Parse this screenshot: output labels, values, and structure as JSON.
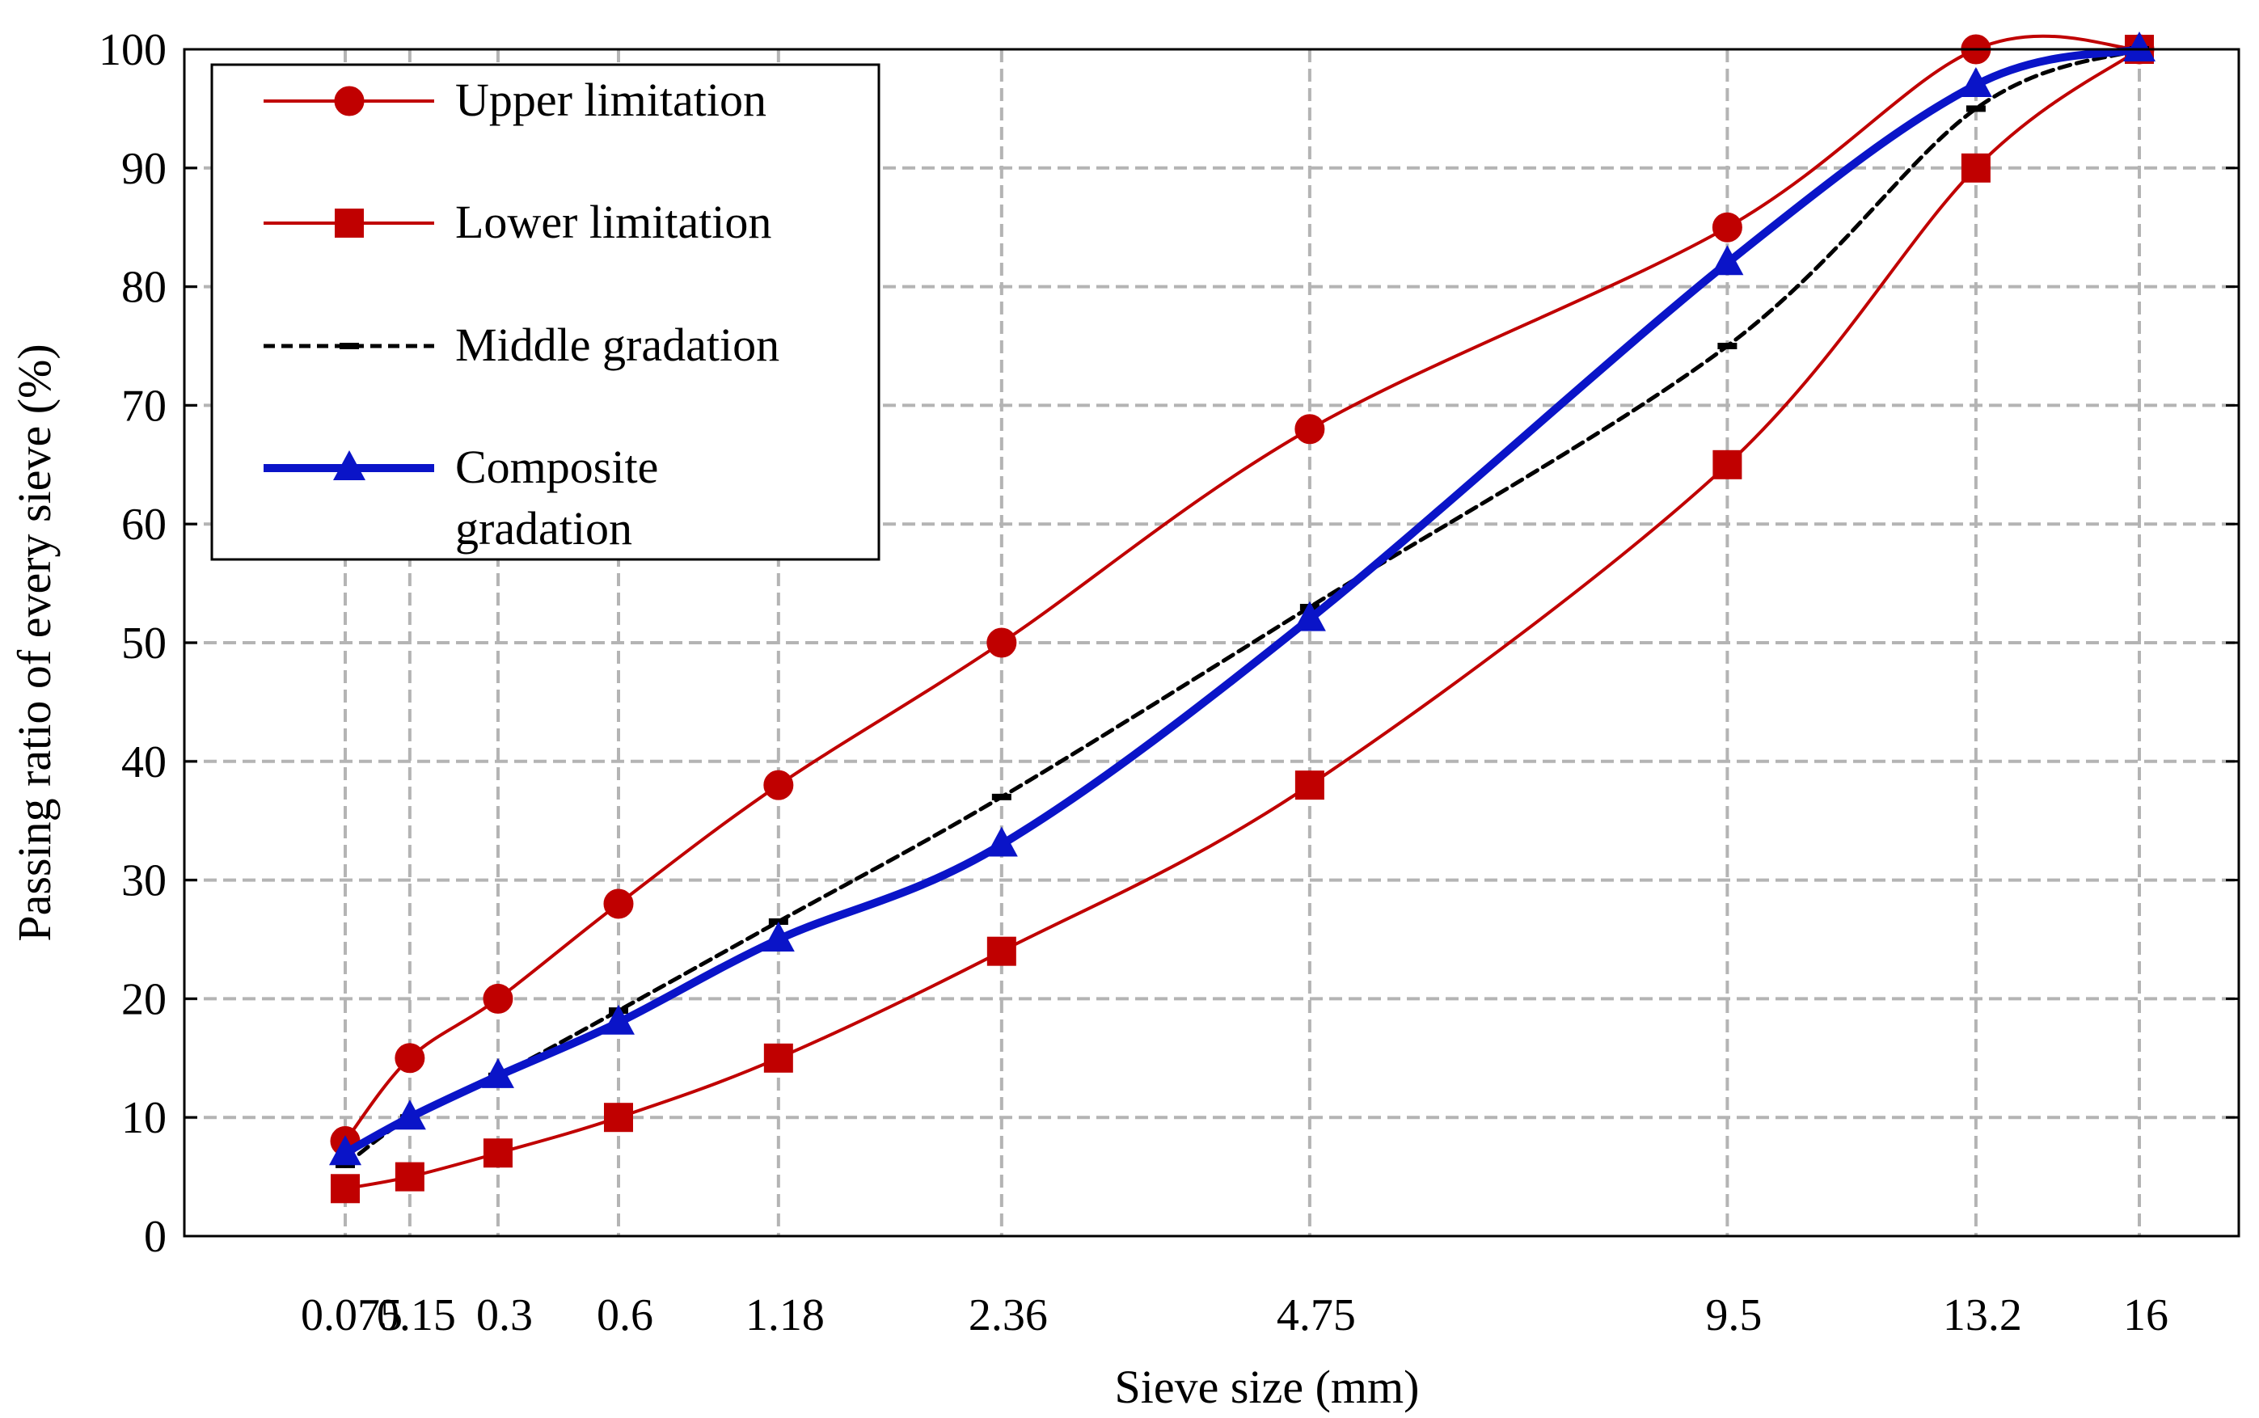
{
  "chart_data": {
    "type": "line",
    "xlabel": "Sieve size (mm)",
    "ylabel": "Passing ratio of every sieve (%)",
    "ylim": [
      0,
      100
    ],
    "yticks": [
      "0",
      "10",
      "20",
      "30",
      "40",
      "50",
      "60",
      "70",
      "80",
      "90",
      "100"
    ],
    "categories": [
      "0.075",
      "0.15",
      "0.3",
      "0.6",
      "1.18",
      "2.36",
      "4.75",
      "9.5",
      "13.2",
      "16"
    ],
    "x_scale": "power 0.45 of sieve size",
    "grid": true,
    "legend_position": "top-left",
    "series": [
      {
        "key": "upper",
        "name": "Upper limitation",
        "color": "#C00000",
        "marker": "circle",
        "dash": "solid",
        "values": [
          8,
          15,
          20,
          28,
          38,
          50,
          68,
          85,
          100,
          100
        ]
      },
      {
        "key": "lower",
        "name": "Lower limitation",
        "color": "#C00000",
        "marker": "square",
        "dash": "solid",
        "values": [
          4,
          5,
          7,
          10,
          15,
          24,
          38,
          65,
          90,
          100
        ]
      },
      {
        "key": "middle",
        "name": "Middle gradation",
        "color": "#000000",
        "marker": "dash",
        "dash": "dashed",
        "values": [
          6,
          10,
          13.5,
          19,
          26.5,
          37,
          53,
          75,
          95,
          100
        ]
      },
      {
        "key": "composite",
        "name": "Composite gradation",
        "name_lines": [
          "Composite",
          "gradation"
        ],
        "color": "#0A14C8",
        "marker": "triangle",
        "dash": "solid",
        "values": [
          7,
          10,
          13.5,
          18,
          25,
          33,
          52,
          82,
          97,
          100
        ]
      }
    ]
  }
}
